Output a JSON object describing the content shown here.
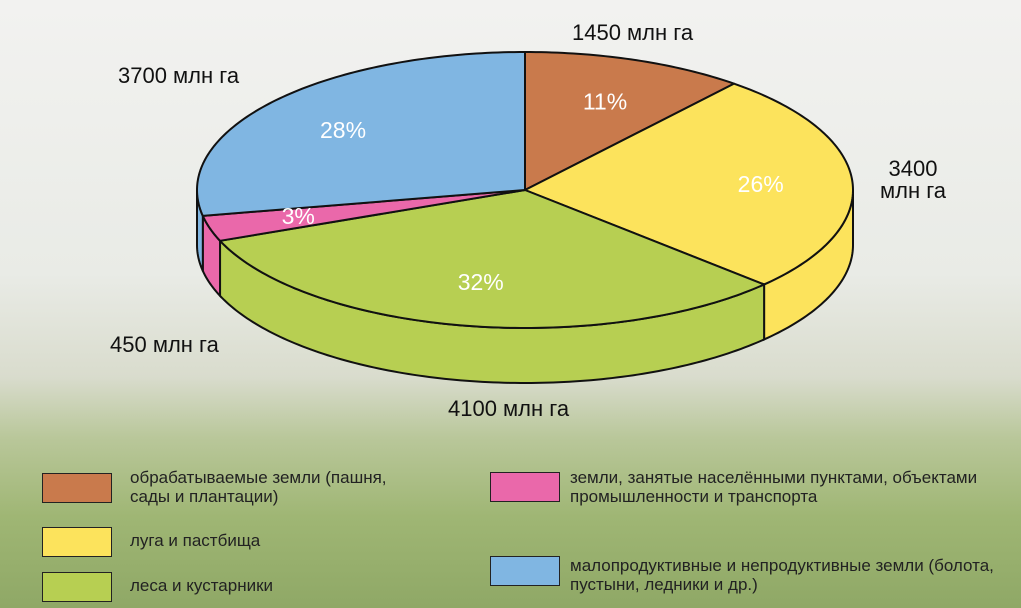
{
  "chart_data": {
    "type": "pie",
    "categories": [
      "обрабатываемые земли (пашня, сады и плантации)",
      "луга и пастбища",
      "леса и кустарники",
      "земли, занятые населёнными пунктами, объектами промышленности и транспорта",
      "малопродуктивные и непродуктивные земли (болота, пустыни, ледники и др.)"
    ],
    "values": [
      11,
      26,
      32,
      3,
      28
    ],
    "value_labels": [
      "11%",
      "26%",
      "32%",
      "3%",
      "28%"
    ],
    "area_labels": [
      "1450 млн га",
      "3400 млн га",
      "4100 млн га",
      "450 млн га",
      "3700 млн га"
    ],
    "colors": [
      "#c97a4c",
      "#fce35c",
      "#b7cf52",
      "#ea68aa",
      "#80b6e2"
    ]
  }
}
